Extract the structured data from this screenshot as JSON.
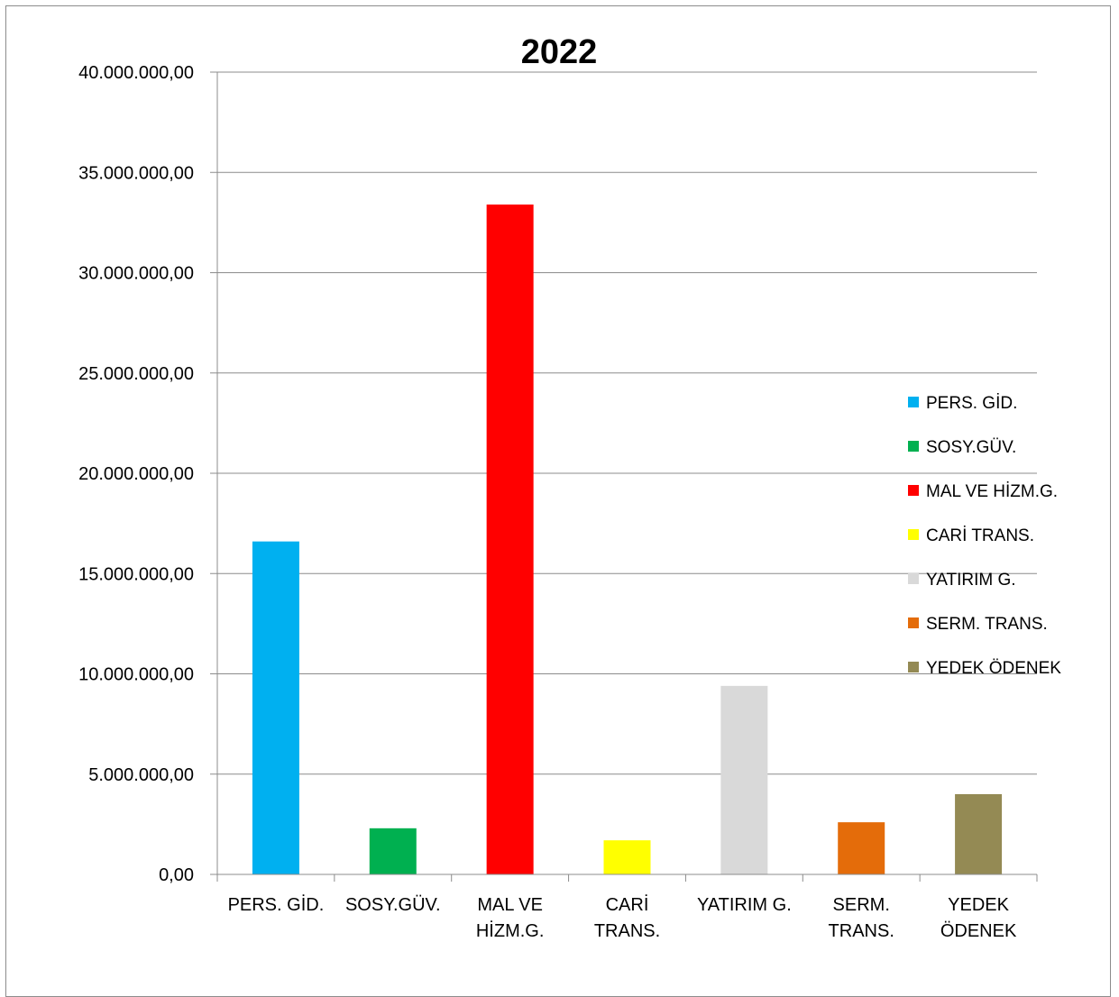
{
  "chart_data": {
    "type": "bar",
    "title": "2022",
    "categories": [
      [
        "PERS. GİD."
      ],
      [
        "SOSY.GÜV."
      ],
      [
        "MAL VE",
        "HİZM.G."
      ],
      [
        "CARİ",
        "TRANS."
      ],
      [
        "YATIRIM G."
      ],
      [
        "SERM.",
        "TRANS."
      ],
      [
        "YEDEK",
        "ÖDENEK"
      ]
    ],
    "values": [
      16600000,
      2300000,
      33400000,
      1700000,
      9400000,
      2600000,
      4000000
    ],
    "colors": [
      "#00B0F0",
      "#00B050",
      "#FF0000",
      "#FFFF00",
      "#D9D9D9",
      "#E46C0A",
      "#948A54"
    ],
    "ylim": [
      0,
      40000000
    ],
    "y_ticks": [
      {
        "value": 0,
        "label": "0,00"
      },
      {
        "value": 5000000,
        "label": "5.000.000,00"
      },
      {
        "value": 10000000,
        "label": "10.000.000,00"
      },
      {
        "value": 15000000,
        "label": "15.000.000,00"
      },
      {
        "value": 20000000,
        "label": "20.000.000,00"
      },
      {
        "value": 25000000,
        "label": "25.000.000,00"
      },
      {
        "value": 30000000,
        "label": "30.000.000,00"
      },
      {
        "value": 35000000,
        "label": "35.000.000,00"
      },
      {
        "value": 40000000,
        "label": "40.000.000,00"
      }
    ],
    "legend": {
      "position": "right",
      "entries": [
        "PERS. GİD.",
        "SOSY.GÜV.",
        "MAL VE HİZM.G.",
        "CARİ TRANS.",
        "YATIRIM G.",
        "SERM. TRANS.",
        "YEDEK ÖDENEK"
      ]
    },
    "grid": true,
    "xlabel": "",
    "ylabel": ""
  }
}
